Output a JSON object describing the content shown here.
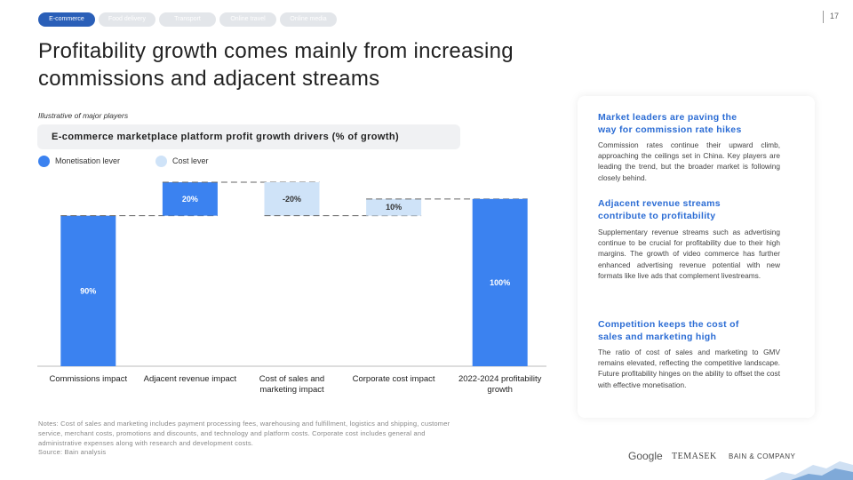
{
  "tabs": [
    "E-commerce",
    "Food delivery",
    "Transport",
    "Online travel",
    "Online media"
  ],
  "page_number": "17",
  "title": "Profitability growth comes mainly from increasing commissions and adjacent streams",
  "chart_data": {
    "type": "waterfall",
    "subtitle": "Illustrative of major players",
    "title": "E-commerce marketplace platform profit growth drivers (% of growth)",
    "categories": [
      "Commissions impact",
      "Adjacent revenue impact",
      "Cost of sales and marketing impact",
      "Corporate cost impact",
      "2022-2024 profitability growth"
    ],
    "series": [
      {
        "name": "Monetisation lever",
        "color": "#3b82f0",
        "values": [
          90,
          20,
          null,
          null,
          100
        ],
        "value_labels": [
          "90%",
          "20%",
          null,
          null,
          "100%"
        ]
      },
      {
        "name": "Cost lever",
        "color": "#cfe3f8",
        "values": [
          null,
          null,
          -20,
          10,
          null
        ],
        "value_labels": [
          null,
          null,
          "-20%",
          "10%",
          null
        ]
      }
    ]
  },
  "sidebar": [
    {
      "heading": "Market leaders are paving the way for commission rate hikes",
      "body": "Commission rates continue their upward climb, approaching the ceilings set in China. Key players are leading the trend, but the broader market is following closely behind."
    },
    {
      "heading": "Adjacent revenue streams contribute to profitability",
      "body": "Supplementary revenue streams such as advertising continue to be crucial for profitability due to their high margins. The growth of video commerce has further enhanced advertising revenue potential with new formats like live ads that complement livestreams."
    },
    {
      "heading": "Competition keeps the cost of sales and marketing high",
      "body": "The ratio of cost of sales and marketing to GMV remains elevated, reflecting the competitive landscape. Future profitability hinges on the ability to offset the cost with effective monetisation."
    }
  ],
  "notes": "Notes: Cost of sales and marketing includes payment processing fees, warehousing and fulfillment, logistics and shipping, customer service, merchant costs, promotions and discounts, and technology and platform costs. Corporate cost includes general and administrative expenses along with research and development costs.",
  "source": "Source: Bain analysis",
  "logos": [
    "Google",
    "TEMASEK",
    "BAIN & COMPANY"
  ]
}
